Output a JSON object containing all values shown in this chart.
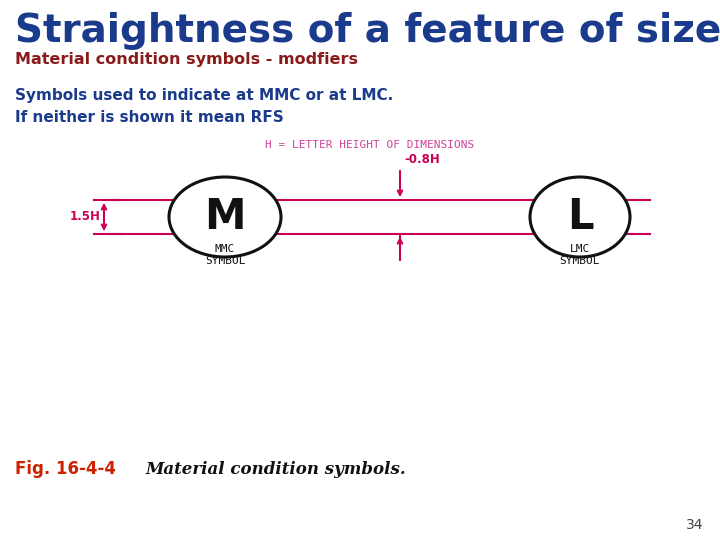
{
  "title": "Straightness of a feature of size",
  "title_color": "#1a3a8c",
  "subtitle": "Material condition symbols - modfiers",
  "subtitle_color": "#8b1a1a",
  "line1": "Symbols used to indicate at MMC or at LMC.",
  "line2": "If neither is shown it mean RFS",
  "text_color": "#1a3a8c",
  "fig_label": "Fig. 16-4-4",
  "fig_label_color": "#cc2200",
  "fig_caption": "Material condition symbols.",
  "fig_caption_color": "#111111",
  "page_number": "34",
  "diagram_note": "H = LETTER HEIGHT OF DIMENSIONS",
  "diagram_note_color": "#cc4499",
  "label_08h": "-0.8H",
  "label_15h": "1.5H",
  "mmc_label": "MMC\nSYMBOL",
  "lmc_label": "LMC\nSYMBOL",
  "symbol_M": "M",
  "symbol_L": "L",
  "pink_color": "#cc0055",
  "circle_color": "#111111",
  "background_color": "#ffffff"
}
